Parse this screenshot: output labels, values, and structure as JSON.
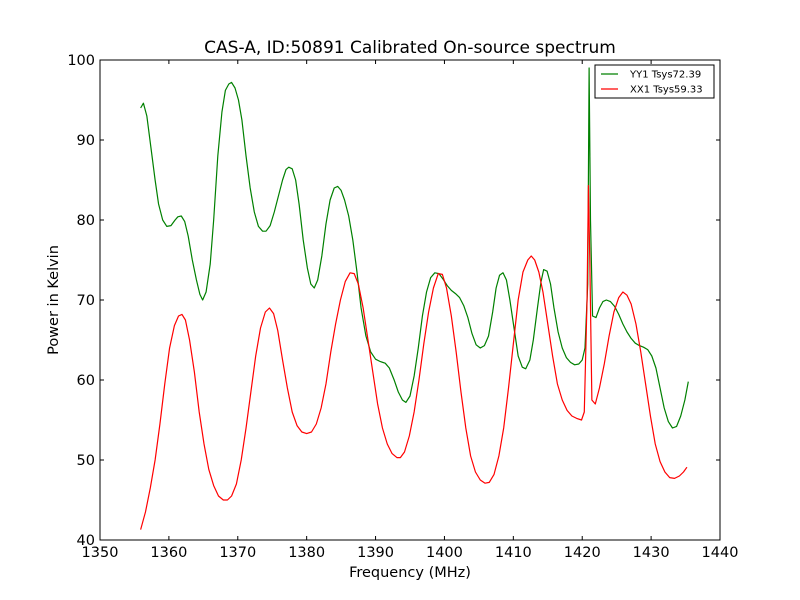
{
  "chart_data": {
    "type": "line",
    "title": "CAS-A, ID:50891 Calibrated On-source spectrum",
    "xlabel": "Frequency (MHz)",
    "ylabel": "Power in Kelvin",
    "xlim": [
      1350,
      1440
    ],
    "ylim": [
      40,
      100
    ],
    "xticks": [
      1350,
      1360,
      1370,
      1380,
      1390,
      1400,
      1410,
      1420,
      1430,
      1440
    ],
    "yticks": [
      40,
      50,
      60,
      70,
      80,
      90,
      100
    ],
    "grid": false,
    "legend_position": "top-right",
    "series": [
      {
        "name": "YY1 Tsys72.39",
        "color": "#008000",
        "points": [
          [
            1355.9,
            94.0
          ],
          [
            1356.3,
            94.6
          ],
          [
            1356.8,
            93.0
          ],
          [
            1357.4,
            89.0
          ],
          [
            1358.0,
            85.0
          ],
          [
            1358.5,
            82.0
          ],
          [
            1359.1,
            80.0
          ],
          [
            1359.7,
            79.2
          ],
          [
            1360.3,
            79.3
          ],
          [
            1360.9,
            80.0
          ],
          [
            1361.3,
            80.4
          ],
          [
            1361.8,
            80.5
          ],
          [
            1362.3,
            79.8
          ],
          [
            1362.8,
            78.0
          ],
          [
            1363.4,
            75.0
          ],
          [
            1364.0,
            72.5
          ],
          [
            1364.5,
            70.7
          ],
          [
            1364.9,
            70.0
          ],
          [
            1365.4,
            71.0
          ],
          [
            1366.0,
            74.5
          ],
          [
            1366.5,
            80.0
          ],
          [
            1367.1,
            88.0
          ],
          [
            1367.7,
            93.5
          ],
          [
            1368.2,
            96.2
          ],
          [
            1368.7,
            97.0
          ],
          [
            1369.1,
            97.2
          ],
          [
            1369.6,
            96.5
          ],
          [
            1370.1,
            95.0
          ],
          [
            1370.6,
            92.5
          ],
          [
            1371.2,
            88.0
          ],
          [
            1371.8,
            84.0
          ],
          [
            1372.4,
            81.0
          ],
          [
            1373.0,
            79.2
          ],
          [
            1373.6,
            78.6
          ],
          [
            1374.1,
            78.6
          ],
          [
            1374.7,
            79.3
          ],
          [
            1375.3,
            81.0
          ],
          [
            1375.9,
            83.0
          ],
          [
            1376.5,
            85.0
          ],
          [
            1377.0,
            86.3
          ],
          [
            1377.4,
            86.6
          ],
          [
            1377.9,
            86.4
          ],
          [
            1378.4,
            85.0
          ],
          [
            1378.9,
            82.0
          ],
          [
            1379.5,
            77.5
          ],
          [
            1380.1,
            74.0
          ],
          [
            1380.6,
            72.0
          ],
          [
            1381.1,
            71.5
          ],
          [
            1381.6,
            72.5
          ],
          [
            1382.2,
            75.5
          ],
          [
            1382.8,
            79.5
          ],
          [
            1383.4,
            82.5
          ],
          [
            1384.0,
            84.0
          ],
          [
            1384.5,
            84.2
          ],
          [
            1385.0,
            83.7
          ],
          [
            1385.5,
            82.5
          ],
          [
            1386.1,
            80.5
          ],
          [
            1386.7,
            77.5
          ],
          [
            1387.3,
            73.5
          ],
          [
            1387.9,
            69.0
          ],
          [
            1388.6,
            65.5
          ],
          [
            1389.3,
            63.5
          ],
          [
            1390.0,
            62.6
          ],
          [
            1390.7,
            62.3
          ],
          [
            1391.4,
            62.1
          ],
          [
            1392.0,
            61.5
          ],
          [
            1392.7,
            60.0
          ],
          [
            1393.3,
            58.5
          ],
          [
            1393.9,
            57.5
          ],
          [
            1394.4,
            57.2
          ],
          [
            1395.0,
            58.0
          ],
          [
            1395.6,
            60.5
          ],
          [
            1396.2,
            64.0
          ],
          [
            1396.8,
            68.0
          ],
          [
            1397.4,
            71.0
          ],
          [
            1398.0,
            72.8
          ],
          [
            1398.6,
            73.4
          ],
          [
            1399.2,
            73.3
          ],
          [
            1399.8,
            72.6
          ],
          [
            1400.4,
            71.8
          ],
          [
            1401.0,
            71.2
          ],
          [
            1401.6,
            70.8
          ],
          [
            1402.2,
            70.3
          ],
          [
            1402.8,
            69.3
          ],
          [
            1403.4,
            67.8
          ],
          [
            1404.0,
            65.8
          ],
          [
            1404.6,
            64.4
          ],
          [
            1405.2,
            64.0
          ],
          [
            1405.8,
            64.3
          ],
          [
            1406.4,
            65.5
          ],
          [
            1407.0,
            68.5
          ],
          [
            1407.5,
            71.5
          ],
          [
            1408.0,
            73.1
          ],
          [
            1408.5,
            73.4
          ],
          [
            1409.0,
            72.5
          ],
          [
            1409.5,
            70.0
          ],
          [
            1410.1,
            66.5
          ],
          [
            1410.7,
            63.0
          ],
          [
            1411.3,
            61.6
          ],
          [
            1411.8,
            61.4
          ],
          [
            1412.4,
            62.5
          ],
          [
            1412.9,
            65.0
          ],
          [
            1413.5,
            69.0
          ],
          [
            1414.0,
            72.2
          ],
          [
            1414.4,
            73.8
          ],
          [
            1414.9,
            73.6
          ],
          [
            1415.4,
            72.0
          ],
          [
            1415.9,
            69.0
          ],
          [
            1416.5,
            66.0
          ],
          [
            1417.1,
            64.0
          ],
          [
            1417.7,
            62.8
          ],
          [
            1418.3,
            62.2
          ],
          [
            1418.9,
            61.9
          ],
          [
            1419.5,
            62.0
          ],
          [
            1420.0,
            62.5
          ],
          [
            1420.4,
            64.0
          ],
          [
            1420.8,
            72.0
          ],
          [
            1421.0,
            99.0
          ],
          [
            1421.2,
            80.0
          ],
          [
            1421.5,
            68.0
          ],
          [
            1422.0,
            67.8
          ],
          [
            1422.5,
            69.0
          ],
          [
            1423.0,
            69.8
          ],
          [
            1423.5,
            70.0
          ],
          [
            1424.1,
            69.8
          ],
          [
            1424.7,
            69.2
          ],
          [
            1425.3,
            68.2
          ],
          [
            1425.9,
            67.0
          ],
          [
            1426.5,
            66.0
          ],
          [
            1427.1,
            65.2
          ],
          [
            1427.7,
            64.6
          ],
          [
            1428.3,
            64.3
          ],
          [
            1428.9,
            64.1
          ],
          [
            1429.5,
            63.8
          ],
          [
            1430.1,
            63.0
          ],
          [
            1430.7,
            61.5
          ],
          [
            1431.3,
            59.0
          ],
          [
            1431.9,
            56.5
          ],
          [
            1432.5,
            54.8
          ],
          [
            1433.1,
            54.0
          ],
          [
            1433.7,
            54.2
          ],
          [
            1434.3,
            55.5
          ],
          [
            1434.9,
            57.5
          ],
          [
            1435.4,
            59.8
          ]
        ]
      },
      {
        "name": "XX1 Tsys59.33",
        "color": "#ff0000",
        "points": [
          [
            1355.9,
            41.3
          ],
          [
            1356.6,
            43.5
          ],
          [
            1357.3,
            46.5
          ],
          [
            1358.0,
            50.0
          ],
          [
            1358.7,
            54.5
          ],
          [
            1359.4,
            59.5
          ],
          [
            1360.1,
            64.0
          ],
          [
            1360.8,
            66.8
          ],
          [
            1361.4,
            68.0
          ],
          [
            1361.9,
            68.2
          ],
          [
            1362.4,
            67.5
          ],
          [
            1363.0,
            65.0
          ],
          [
            1363.7,
            61.0
          ],
          [
            1364.4,
            56.0
          ],
          [
            1365.1,
            52.0
          ],
          [
            1365.8,
            48.8
          ],
          [
            1366.5,
            46.8
          ],
          [
            1367.2,
            45.5
          ],
          [
            1367.9,
            45.0
          ],
          [
            1368.5,
            45.0
          ],
          [
            1369.1,
            45.5
          ],
          [
            1369.8,
            47.0
          ],
          [
            1370.5,
            50.0
          ],
          [
            1371.2,
            54.0
          ],
          [
            1371.9,
            58.5
          ],
          [
            1372.6,
            63.0
          ],
          [
            1373.3,
            66.5
          ],
          [
            1374.0,
            68.5
          ],
          [
            1374.6,
            69.0
          ],
          [
            1375.2,
            68.3
          ],
          [
            1375.8,
            66.2
          ],
          [
            1376.5,
            62.5
          ],
          [
            1377.2,
            59.0
          ],
          [
            1377.9,
            56.0
          ],
          [
            1378.6,
            54.3
          ],
          [
            1379.3,
            53.5
          ],
          [
            1380.0,
            53.3
          ],
          [
            1380.7,
            53.5
          ],
          [
            1381.4,
            54.5
          ],
          [
            1382.1,
            56.5
          ],
          [
            1382.8,
            59.5
          ],
          [
            1383.5,
            63.5
          ],
          [
            1384.2,
            67.0
          ],
          [
            1384.9,
            70.0
          ],
          [
            1385.6,
            72.3
          ],
          [
            1386.3,
            73.4
          ],
          [
            1386.9,
            73.3
          ],
          [
            1387.5,
            72.0
          ],
          [
            1388.2,
            69.0
          ],
          [
            1388.9,
            65.0
          ],
          [
            1389.6,
            61.0
          ],
          [
            1390.3,
            57.0
          ],
          [
            1391.0,
            54.0
          ],
          [
            1391.7,
            52.0
          ],
          [
            1392.4,
            50.8
          ],
          [
            1393.1,
            50.3
          ],
          [
            1393.6,
            50.3
          ],
          [
            1394.2,
            51.0
          ],
          [
            1394.9,
            53.0
          ],
          [
            1395.6,
            56.0
          ],
          [
            1396.3,
            60.0
          ],
          [
            1397.0,
            64.5
          ],
          [
            1397.7,
            68.5
          ],
          [
            1398.4,
            71.5
          ],
          [
            1399.1,
            73.3
          ],
          [
            1399.7,
            73.2
          ],
          [
            1400.3,
            71.5
          ],
          [
            1401.0,
            68.0
          ],
          [
            1401.7,
            63.5
          ],
          [
            1402.4,
            58.5
          ],
          [
            1403.1,
            54.0
          ],
          [
            1403.8,
            50.5
          ],
          [
            1404.5,
            48.5
          ],
          [
            1405.2,
            47.5
          ],
          [
            1405.9,
            47.1
          ],
          [
            1406.5,
            47.2
          ],
          [
            1407.2,
            48.2
          ],
          [
            1407.9,
            50.5
          ],
          [
            1408.6,
            54.0
          ],
          [
            1409.3,
            59.0
          ],
          [
            1410.0,
            64.5
          ],
          [
            1410.7,
            70.0
          ],
          [
            1411.4,
            73.5
          ],
          [
            1412.1,
            75.0
          ],
          [
            1412.6,
            75.5
          ],
          [
            1413.1,
            75.0
          ],
          [
            1413.7,
            73.5
          ],
          [
            1414.3,
            71.0
          ],
          [
            1415.0,
            67.0
          ],
          [
            1415.7,
            63.0
          ],
          [
            1416.4,
            59.5
          ],
          [
            1417.1,
            57.5
          ],
          [
            1417.8,
            56.2
          ],
          [
            1418.5,
            55.5
          ],
          [
            1419.2,
            55.2
          ],
          [
            1419.9,
            55.0
          ],
          [
            1420.3,
            56.0
          ],
          [
            1420.7,
            70.0
          ],
          [
            1420.9,
            84.3
          ],
          [
            1421.1,
            75.0
          ],
          [
            1421.4,
            57.5
          ],
          [
            1421.9,
            57.0
          ],
          [
            1422.5,
            59.0
          ],
          [
            1423.2,
            62.0
          ],
          [
            1423.9,
            65.5
          ],
          [
            1424.6,
            68.5
          ],
          [
            1425.3,
            70.3
          ],
          [
            1425.9,
            71.0
          ],
          [
            1426.5,
            70.6
          ],
          [
            1427.1,
            69.5
          ],
          [
            1427.8,
            67.0
          ],
          [
            1428.5,
            63.5
          ],
          [
            1429.2,
            59.5
          ],
          [
            1429.9,
            55.5
          ],
          [
            1430.6,
            52.0
          ],
          [
            1431.3,
            49.8
          ],
          [
            1432.0,
            48.5
          ],
          [
            1432.7,
            47.8
          ],
          [
            1433.4,
            47.7
          ],
          [
            1434.1,
            48.0
          ],
          [
            1434.7,
            48.5
          ],
          [
            1435.2,
            49.1
          ]
        ]
      }
    ]
  }
}
